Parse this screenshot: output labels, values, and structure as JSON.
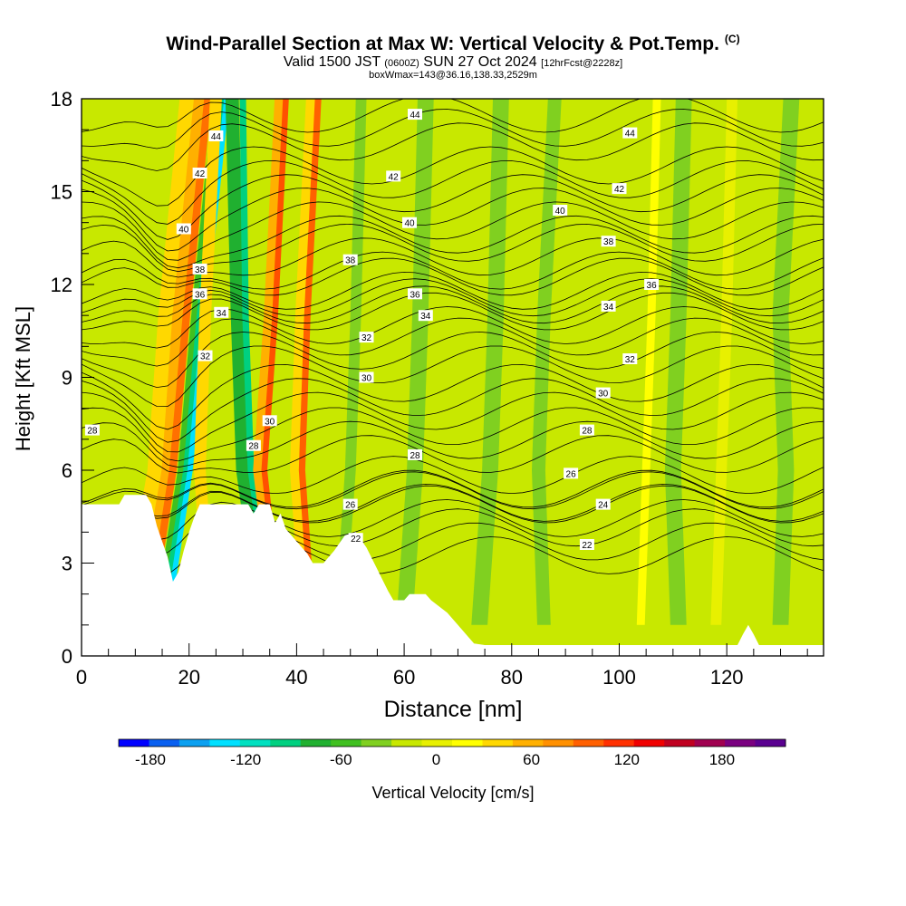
{
  "header": {
    "title": "Wind-Parallel Section at Max W: Vertical Velocity & Pot.Temp.",
    "copyright": "(C)",
    "valid_a": "Valid 1500 JST",
    "valid_utc": "(0600Z)",
    "valid_b": "SUN 27 Oct 2024",
    "forecast": "[12hrFcst@2228z]",
    "box_info": "boxWmax=143@36.16,138.33,2529m"
  },
  "chart_data": {
    "type": "heatmap",
    "xlabel": "Distance [nm]",
    "ylabel": "Height [Kft MSL]",
    "xlim": [
      0,
      138
    ],
    "ylim": [
      0,
      18
    ],
    "xticks": [
      0,
      20,
      40,
      60,
      80,
      100,
      120
    ],
    "yticks": [
      0,
      3,
      6,
      9,
      12,
      15,
      18
    ],
    "colorbar": {
      "label": "Vertical Velocity [cm/s]",
      "ticks": [
        -180,
        -120,
        -60,
        0,
        60,
        120,
        180
      ],
      "range": [
        -200,
        220
      ],
      "colors": [
        "#0000ff",
        "#0a60f0",
        "#0ca0f0",
        "#00e0ff",
        "#00e0c0",
        "#00d080",
        "#20b030",
        "#40c020",
        "#80d020",
        "#c8e800",
        "#e8f000",
        "#ffff00",
        "#ffd800",
        "#ffb000",
        "#ff9000",
        "#ff6000",
        "#ff3000",
        "#f00000",
        "#c00020",
        "#a00050",
        "#7a0080",
        "#5a0090"
      ]
    },
    "terrain": [
      [
        0,
        4.9
      ],
      [
        7,
        4.9
      ],
      [
        8,
        5.2
      ],
      [
        12,
        5.2
      ],
      [
        13,
        4.9
      ],
      [
        14,
        4.2
      ],
      [
        15,
        3.7
      ],
      [
        16,
        3.2
      ],
      [
        17,
        2.4
      ],
      [
        18,
        2.7
      ],
      [
        19,
        3.4
      ],
      [
        20,
        4
      ],
      [
        21,
        4.5
      ],
      [
        22,
        4.9
      ],
      [
        31,
        4.9
      ],
      [
        32,
        4.6
      ],
      [
        33,
        4.9
      ],
      [
        35,
        4.9
      ],
      [
        36,
        4.3
      ],
      [
        37,
        4.6
      ],
      [
        38,
        4.1
      ],
      [
        40,
        3.7
      ],
      [
        42,
        3.3
      ],
      [
        43,
        3
      ],
      [
        45,
        3
      ],
      [
        47,
        3.4
      ],
      [
        49,
        3.9
      ],
      [
        51,
        4
      ],
      [
        53,
        3.5
      ],
      [
        55,
        2.8
      ],
      [
        57,
        2.1
      ],
      [
        58,
        1.8
      ],
      [
        60,
        1.8
      ],
      [
        61,
        2
      ],
      [
        64,
        2
      ],
      [
        65,
        1.8
      ],
      [
        68,
        1.4
      ],
      [
        70,
        1
      ],
      [
        72,
        0.6
      ],
      [
        73,
        0.4
      ],
      [
        75,
        0.35
      ],
      [
        85,
        0.35
      ],
      [
        122,
        0.35
      ],
      [
        123,
        0.7
      ],
      [
        124,
        1
      ],
      [
        125,
        0.7
      ],
      [
        126,
        0.35
      ],
      [
        138,
        0.35
      ]
    ],
    "theta_labels": [
      {
        "text": "44",
        "x": 25,
        "y": 16.8
      },
      {
        "text": "44",
        "x": 62,
        "y": 17.5
      },
      {
        "text": "44",
        "x": 102,
        "y": 16.9
      },
      {
        "text": "42",
        "x": 22,
        "y": 15.6
      },
      {
        "text": "42",
        "x": 58,
        "y": 15.5
      },
      {
        "text": "42",
        "x": 100,
        "y": 15.1
      },
      {
        "text": "40",
        "x": 19,
        "y": 13.8
      },
      {
        "text": "40",
        "x": 61,
        "y": 14
      },
      {
        "text": "40",
        "x": 89,
        "y": 14.4
      },
      {
        "text": "38",
        "x": 22,
        "y": 12.5
      },
      {
        "text": "38",
        "x": 50,
        "y": 12.8
      },
      {
        "text": "38",
        "x": 98,
        "y": 13.4
      },
      {
        "text": "36",
        "x": 22,
        "y": 11.7
      },
      {
        "text": "36",
        "x": 62,
        "y": 11.7
      },
      {
        "text": "36",
        "x": 106,
        "y": 12
      },
      {
        "text": "34",
        "x": 26,
        "y": 11.1
      },
      {
        "text": "34",
        "x": 64,
        "y": 11
      },
      {
        "text": "34",
        "x": 98,
        "y": 11.3
      },
      {
        "text": "32",
        "x": 23,
        "y": 9.7
      },
      {
        "text": "32",
        "x": 53,
        "y": 10.3
      },
      {
        "text": "32",
        "x": 102,
        "y": 9.6
      },
      {
        "text": "30",
        "x": 53,
        "y": 9
      },
      {
        "text": "30",
        "x": 97,
        "y": 8.5
      },
      {
        "text": "30",
        "x": 35,
        "y": 7.6
      },
      {
        "text": "28",
        "x": 2,
        "y": 7.3
      },
      {
        "text": "28",
        "x": 32,
        "y": 6.8
      },
      {
        "text": "28",
        "x": 62,
        "y": 6.5
      },
      {
        "text": "28",
        "x": 94,
        "y": 7.3
      },
      {
        "text": "26",
        "x": 91,
        "y": 5.9
      },
      {
        "text": "26",
        "x": 50,
        "y": 4.9
      },
      {
        "text": "24",
        "x": 97,
        "y": 4.9
      },
      {
        "text": "22",
        "x": 51,
        "y": 3.8
      },
      {
        "text": "22",
        "x": 94,
        "y": 3.6
      }
    ]
  }
}
